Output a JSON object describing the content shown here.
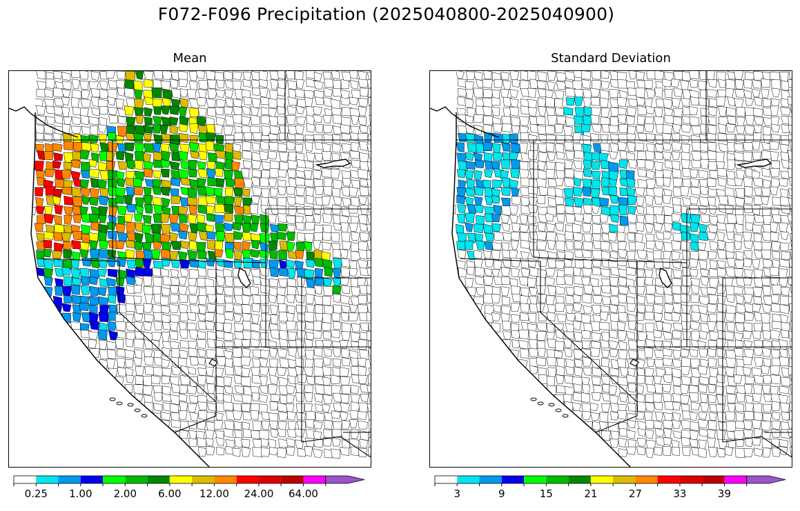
{
  "figure": {
    "title": "F072-F096 Precipitation (2025040800-2025040900)"
  },
  "panels": [
    {
      "id": "mean",
      "title": "Mean",
      "colorbar": {
        "colors": [
          "#ffffff",
          "#00e5ee",
          "#0099ee",
          "#0000ee",
          "#00ff00",
          "#00bb00",
          "#008800",
          "#ffff00",
          "#ddbb00",
          "#ff8800",
          "#ff0000",
          "#dd0000",
          "#bb0000",
          "#ff00ff",
          "#9955cc"
        ],
        "tick_labels": [
          "0.25",
          "1.00",
          "2.00",
          "6.00",
          "12.00",
          "24.00",
          "64.00"
        ],
        "extend": "max"
      }
    },
    {
      "id": "stddev",
      "title": "Standard Deviation",
      "colorbar": {
        "colors": [
          "#ffffff",
          "#00e5ee",
          "#0099ee",
          "#0000ee",
          "#00ff00",
          "#00bb00",
          "#008800",
          "#ffff00",
          "#ddbb00",
          "#ff8800",
          "#ff0000",
          "#dd0000",
          "#bb0000",
          "#ff00ff",
          "#9955cc"
        ],
        "tick_labels": [
          "3",
          "9",
          "15",
          "21",
          "27",
          "33",
          "39"
        ],
        "extend": "max"
      }
    }
  ]
}
